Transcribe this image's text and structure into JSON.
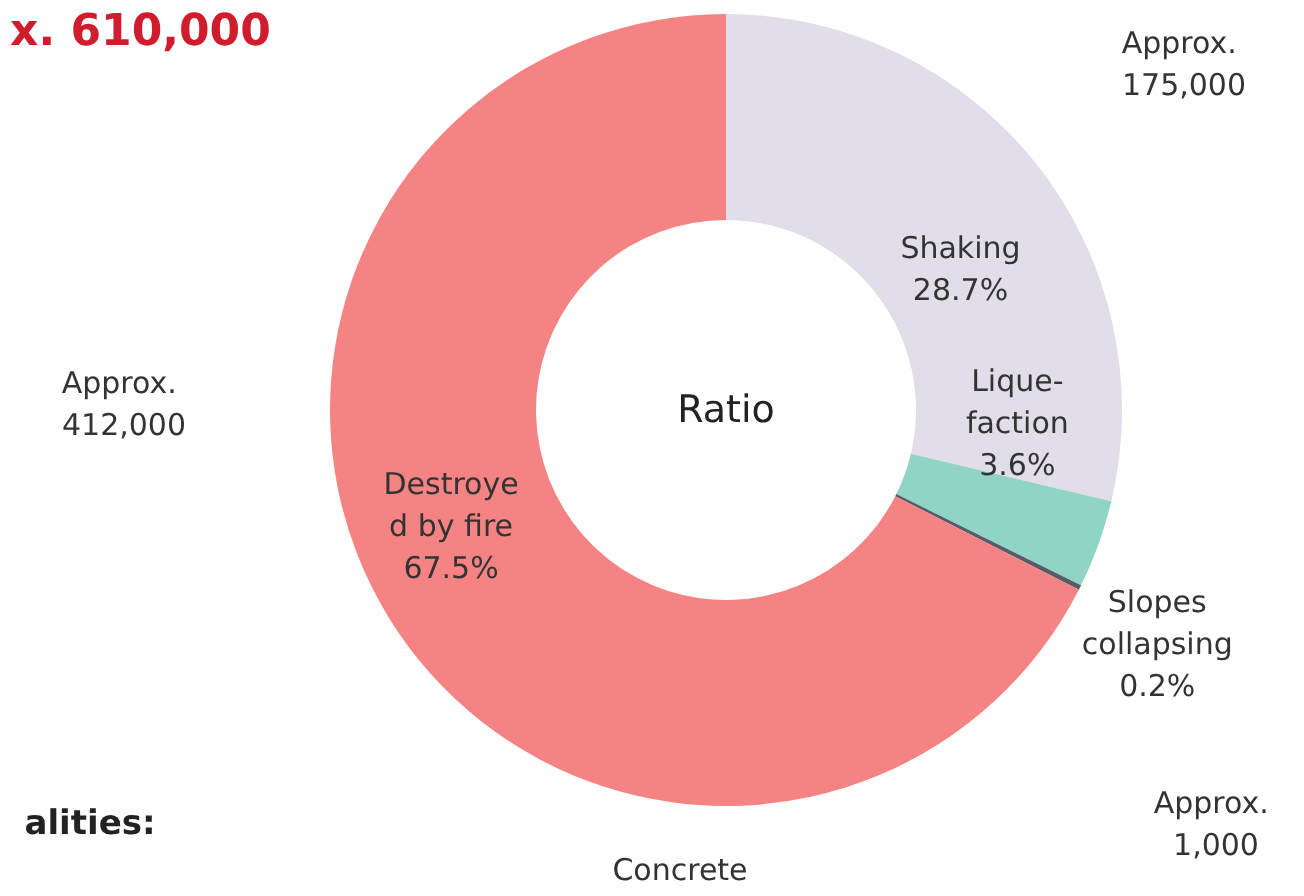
{
  "chart_data": {
    "type": "donut",
    "title": "x. 610,000",
    "categories": [
      "Shaking",
      "Lique-\nfaction",
      "Slopes\ncollapsing",
      "Destroye\nd by fire"
    ],
    "values": [
      28.7,
      3.6,
      0.2,
      67.5
    ],
    "colors": [
      "#e1dde9",
      "#8fd4c5",
      "#5a5a6a",
      "#f58383"
    ],
    "value_labels": [
      "28.7%",
      "3.6%",
      "0.2%",
      "67.5%"
    ],
    "annotations": [
      "Ratio",
      "Approx. 175,000",
      "Approx. 412,000",
      "Approx. 1,000",
      "alities:",
      "Concrete"
    ]
  }
}
